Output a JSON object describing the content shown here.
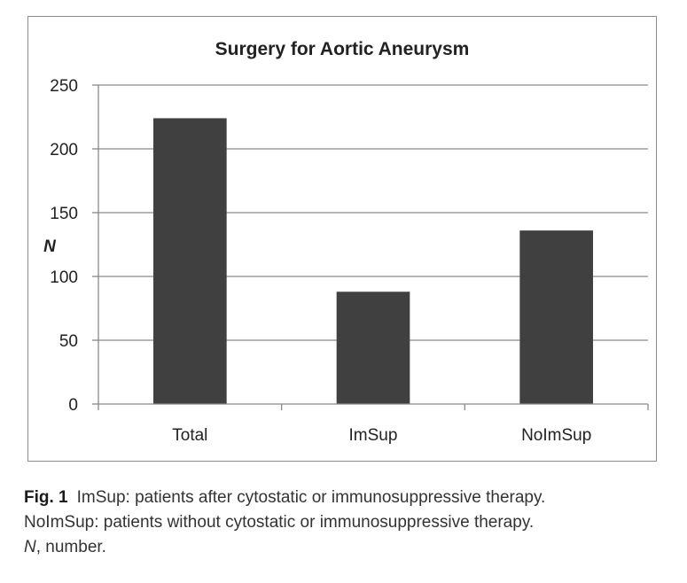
{
  "chart_data": {
    "type": "bar",
    "title": "Surgery for Aortic Aneurysm",
    "ylabel": "N",
    "xlabel": "",
    "categories": [
      "Total",
      "ImSup",
      "NoImSup"
    ],
    "values": [
      224,
      88,
      136
    ],
    "ylim": [
      0,
      250
    ],
    "yticks": [
      0,
      50,
      100,
      150,
      200,
      250
    ],
    "grid": true,
    "bar_color": "#404040",
    "legend": "none"
  },
  "caption": {
    "label": "Fig. 1",
    "line1": "ImSup: patients after cytostatic or immunosuppressive therapy.",
    "line2": "NoImSup: patients without cytostatic or immunosuppressive therapy.",
    "line3_symbol": "N",
    "line3_rest": ", number."
  }
}
